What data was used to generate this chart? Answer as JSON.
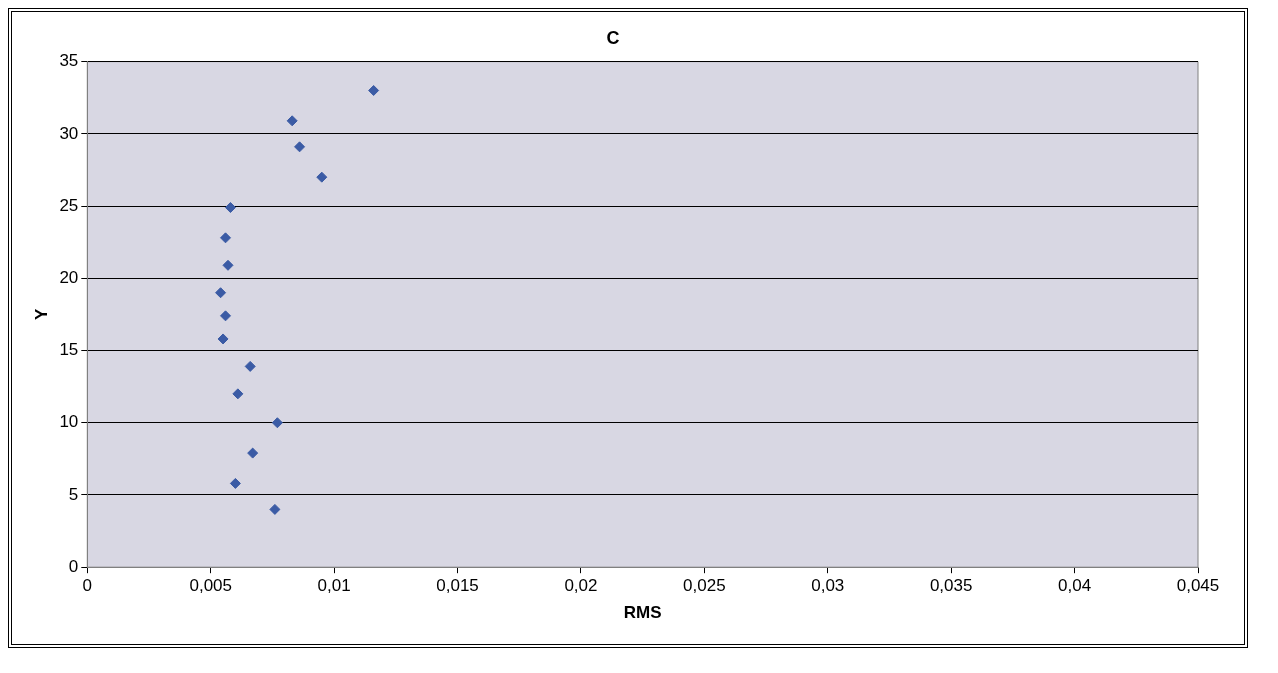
{
  "chart_data": {
    "type": "scatter",
    "title": "C",
    "xlabel": "RMS",
    "ylabel": "Y",
    "x": [
      0.0116,
      0.0083,
      0.0086,
      0.0095,
      0.0058,
      0.0056,
      0.0057,
      0.0054,
      0.0056,
      0.0055,
      0.0066,
      0.0061,
      0.0077,
      0.0067,
      0.006,
      0.0076
    ],
    "values": [
      33,
      30.9,
      29.1,
      27,
      24.9,
      22.8,
      20.9,
      19,
      17.4,
      15.8,
      13.9,
      12,
      10,
      7.9,
      5.8,
      4
    ],
    "color": "#3b5ba5",
    "marker": "diamond",
    "grid": "y",
    "legend": false,
    "xlim": [
      0,
      0.045
    ],
    "xticks": [
      {
        "value": 0,
        "label": "0"
      },
      {
        "value": 0.005,
        "label": "0,005"
      },
      {
        "value": 0.01,
        "label": "0,01"
      },
      {
        "value": 0.015,
        "label": "0,015"
      },
      {
        "value": 0.02,
        "label": "0,02"
      },
      {
        "value": 0.025,
        "label": "0,025"
      },
      {
        "value": 0.03,
        "label": "0,03"
      },
      {
        "value": 0.035,
        "label": "0,035"
      },
      {
        "value": 0.04,
        "label": "0,04"
      },
      {
        "value": 0.045,
        "label": "0,045"
      }
    ],
    "ylim": [
      0,
      35
    ],
    "yticks": [
      0,
      5,
      10,
      15,
      20,
      25,
      30,
      35
    ]
  }
}
